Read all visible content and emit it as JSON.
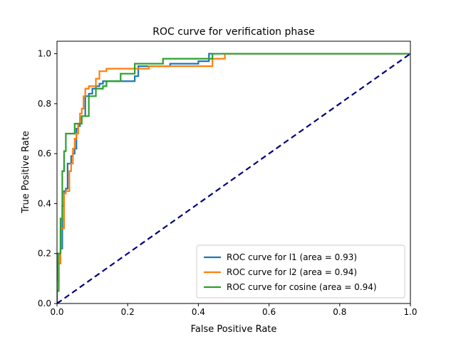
{
  "chart_data": {
    "type": "line",
    "title": "ROC curve for verification phase",
    "xlabel": "False Positive Rate",
    "ylabel": "True Positive Rate",
    "xlim": [
      0.0,
      1.0
    ],
    "ylim": [
      0.0,
      1.05
    ],
    "xticks": [
      0.0,
      0.2,
      0.4,
      0.6,
      0.8,
      1.0
    ],
    "yticks": [
      0.0,
      0.2,
      0.4,
      0.6,
      0.8,
      1.0
    ],
    "xtick_labels": [
      "0.0",
      "0.2",
      "0.4",
      "0.6",
      "0.8",
      "1.0"
    ],
    "ytick_labels": [
      "0.0",
      "0.2",
      "0.4",
      "0.6",
      "0.8",
      "1.0"
    ],
    "grid": false,
    "legend_position": "lower-right",
    "series": [
      {
        "name": "ROC curve for l1 (area = 0.93)",
        "color": "#1f77b4",
        "style": "step",
        "x": [
          0.0,
          0.0,
          0.01,
          0.01,
          0.015,
          0.015,
          0.02,
          0.02,
          0.025,
          0.025,
          0.03,
          0.03,
          0.04,
          0.04,
          0.045,
          0.045,
          0.05,
          0.05,
          0.055,
          0.055,
          0.06,
          0.06,
          0.065,
          0.065,
          0.07,
          0.07,
          0.08,
          0.08,
          0.09,
          0.09,
          0.1,
          0.1,
          0.11,
          0.11,
          0.12,
          0.12,
          0.13,
          0.13,
          0.14,
          0.14,
          0.22,
          0.22,
          0.23,
          0.23,
          0.32,
          0.32,
          0.4,
          0.4,
          0.43,
          0.43,
          1.0
        ],
        "y": [
          0.0,
          0.2,
          0.2,
          0.22,
          0.22,
          0.39,
          0.39,
          0.45,
          0.45,
          0.46,
          0.46,
          0.56,
          0.56,
          0.59,
          0.59,
          0.6,
          0.6,
          0.62,
          0.62,
          0.7,
          0.7,
          0.71,
          0.71,
          0.74,
          0.74,
          0.75,
          0.75,
          0.83,
          0.83,
          0.84,
          0.84,
          0.86,
          0.86,
          0.87,
          0.87,
          0.88,
          0.88,
          0.89,
          0.89,
          0.89,
          0.89,
          0.91,
          0.91,
          0.95,
          0.95,
          0.96,
          0.96,
          0.97,
          0.97,
          1.0,
          1.0
        ]
      },
      {
        "name": "ROC curve for l2 (area = 0.94)",
        "color": "#ff7f0e",
        "style": "step",
        "x": [
          0.0,
          0.0,
          0.005,
          0.005,
          0.01,
          0.01,
          0.02,
          0.02,
          0.025,
          0.025,
          0.035,
          0.035,
          0.04,
          0.04,
          0.045,
          0.045,
          0.05,
          0.05,
          0.055,
          0.055,
          0.06,
          0.06,
          0.065,
          0.065,
          0.07,
          0.07,
          0.075,
          0.075,
          0.08,
          0.08,
          0.09,
          0.09,
          0.11,
          0.11,
          0.12,
          0.12,
          0.14,
          0.14,
          0.26,
          0.26,
          0.44,
          0.44,
          0.475,
          0.475,
          1.0
        ],
        "y": [
          0.0,
          0.09,
          0.09,
          0.16,
          0.16,
          0.3,
          0.3,
          0.44,
          0.44,
          0.45,
          0.45,
          0.53,
          0.53,
          0.56,
          0.56,
          0.62,
          0.62,
          0.66,
          0.66,
          0.68,
          0.68,
          0.72,
          0.72,
          0.76,
          0.76,
          0.78,
          0.78,
          0.83,
          0.83,
          0.86,
          0.86,
          0.87,
          0.87,
          0.9,
          0.9,
          0.93,
          0.93,
          0.94,
          0.94,
          0.95,
          0.95,
          0.98,
          0.98,
          1.0,
          1.0
        ]
      },
      {
        "name": "ROC curve for cosine (area = 0.94)",
        "color": "#2ca02c",
        "style": "step",
        "x": [
          0.0,
          0.0,
          0.005,
          0.005,
          0.01,
          0.01,
          0.015,
          0.015,
          0.02,
          0.02,
          0.025,
          0.025,
          0.05,
          0.05,
          0.07,
          0.07,
          0.09,
          0.09,
          0.11,
          0.11,
          0.13,
          0.13,
          0.14,
          0.14,
          0.18,
          0.18,
          0.22,
          0.22,
          0.3,
          0.3,
          0.44,
          0.44,
          1.0
        ],
        "y": [
          0.0,
          0.05,
          0.05,
          0.2,
          0.2,
          0.34,
          0.34,
          0.53,
          0.53,
          0.61,
          0.61,
          0.68,
          0.68,
          0.72,
          0.72,
          0.75,
          0.75,
          0.83,
          0.83,
          0.86,
          0.86,
          0.87,
          0.87,
          0.89,
          0.89,
          0.92,
          0.92,
          0.96,
          0.96,
          0.98,
          0.98,
          1.0,
          1.0
        ]
      }
    ],
    "reference_line": {
      "x": [
        0.0,
        1.0
      ],
      "y": [
        0.0,
        1.0
      ],
      "color": "#000080",
      "style": "dashed"
    }
  }
}
